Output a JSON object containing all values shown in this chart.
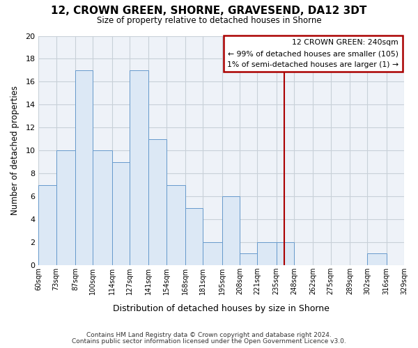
{
  "title": "12, CROWN GREEN, SHORNE, GRAVESEND, DA12 3DT",
  "subtitle": "Size of property relative to detached houses in Shorne",
  "xlabel": "Distribution of detached houses by size in Shorne",
  "ylabel": "Number of detached properties",
  "bar_color": "#dce8f5",
  "bar_edge_color": "#6699cc",
  "grid_color": "#c8d0d8",
  "bins": [
    60,
    73,
    87,
    100,
    114,
    127,
    141,
    154,
    168,
    181,
    195,
    208,
    221,
    235,
    248,
    262,
    275,
    289,
    302,
    316,
    329
  ],
  "counts": [
    7,
    10,
    17,
    10,
    9,
    17,
    11,
    7,
    5,
    2,
    6,
    1,
    2,
    2,
    0,
    0,
    0,
    0,
    1,
    0
  ],
  "tick_labels": [
    "60sqm",
    "73sqm",
    "87sqm",
    "100sqm",
    "114sqm",
    "127sqm",
    "141sqm",
    "154sqm",
    "168sqm",
    "181sqm",
    "195sqm",
    "208sqm",
    "221sqm",
    "235sqm",
    "248sqm",
    "262sqm",
    "275sqm",
    "289sqm",
    "302sqm",
    "316sqm",
    "329sqm"
  ],
  "property_line_x": 241,
  "property_line_color": "#aa0000",
  "ylim": [
    0,
    20
  ],
  "yticks": [
    0,
    2,
    4,
    6,
    8,
    10,
    12,
    14,
    16,
    18,
    20
  ],
  "annotation_title": "12 CROWN GREEN: 240sqm",
  "annotation_line1": "← 99% of detached houses are smaller (105)",
  "annotation_line2": "1% of semi-detached houses are larger (1) →",
  "footnote1": "Contains HM Land Registry data © Crown copyright and database right 2024.",
  "footnote2": "Contains public sector information licensed under the Open Government Licence v3.0.",
  "background_color": "#ffffff",
  "plot_bg_color": "#eef2f8"
}
